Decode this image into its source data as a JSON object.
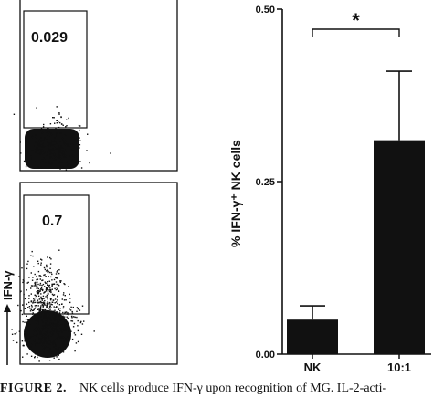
{
  "flow_panels": [
    {
      "gate_value": "0.029"
    },
    {
      "gate_value": "0.7"
    }
  ],
  "flow_axis_label": "IFN-γ",
  "chart_data": {
    "type": "bar",
    "categories": [
      "NK",
      "10:1"
    ],
    "values": [
      0.05,
      0.31
    ],
    "error_upper": [
      0.07,
      0.41
    ],
    "ylabel": "% IFN-γ⁺ NK cells",
    "ylim": [
      0,
      0.5
    ],
    "yticks": [
      "0.00",
      "0.25",
      "0.50"
    ],
    "ytick_values": [
      0,
      0.25,
      0.5
    ],
    "bar_color": "#111111",
    "significance": {
      "label": "*",
      "between": [
        "NK",
        "10:1"
      ]
    }
  },
  "caption": {
    "figure_number": "FIGURE 2.",
    "text": "NK cells produce IFN-γ upon recognition of MG. IL-2-acti-"
  }
}
